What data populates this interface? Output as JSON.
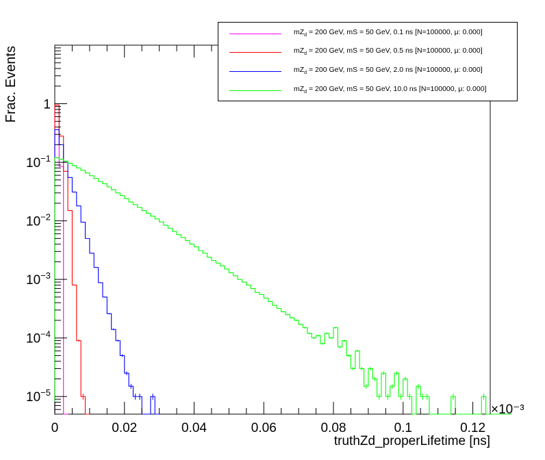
{
  "chart_data": {
    "type": "line",
    "style": "step-histogram",
    "xlabel": "truthZd_properLifetime [ns]",
    "ylabel": "Frac. Events",
    "x_multiplier_label": "×10⁻³",
    "xlim": [
      0,
      0.125
    ],
    "ylim": [
      5e-06,
      10
    ],
    "y_scale": "log",
    "x_ticks": [
      "0",
      "0.02",
      "0.04",
      "0.06",
      "0.08",
      "0.1",
      "0.12"
    ],
    "y_tick_labels": [
      {
        "value": 1e-05,
        "base": "10",
        "exp": "−5"
      },
      {
        "value": 0.0001,
        "base": "10",
        "exp": "−4"
      },
      {
        "value": 0.001,
        "base": "10",
        "exp": "−3"
      },
      {
        "value": 0.01,
        "base": "10",
        "exp": "−2"
      },
      {
        "value": 0.1,
        "base": "10",
        "exp": "−1"
      },
      {
        "value": 1,
        "base": "1",
        "exp": ""
      }
    ],
    "grid": false,
    "legend_position": "top-right",
    "bin_width": 0.00125,
    "series": [
      {
        "name": "mZd = 200 GeV, mS = 50 GeV, 0.1 ns [N=100000,      μ: 0.000]",
        "name_prefix": "mZ",
        "name_sub": "d",
        "name_suffix": " = 200 GeV, mS = 50 GeV, 0.1 ns [N=100000,      μ: 0.000]",
        "color": "#ff00ff",
        "values": [
          0.9,
          0.085,
          0.0
        ]
      },
      {
        "name": "mZd = 200 GeV, mS = 50 GeV, 0.5 ns [N=100000,      μ: 0.000]",
        "name_prefix": "mZ",
        "name_sub": "d",
        "name_suffix": " = 200 GeV, mS = 50 GeV, 0.5 ns [N=100000,      μ: 0.000]",
        "color": "#ff0000",
        "values": [
          0.95,
          0.28,
          0.07,
          0.015,
          0.0008,
          9e-05,
          1e-05,
          0.0
        ]
      },
      {
        "name": "mZd = 200 GeV, mS = 50 GeV, 2.0 ns [N=100000,      μ: 0.000]",
        "name_prefix": "mZ",
        "name_sub": "d",
        "name_suffix": " = 200 GeV, mS = 50 GeV, 2.0 ns [N=100000,      μ: 0.000]",
        "color": "#0000ff",
        "values": [
          0.36,
          0.2,
          0.1,
          0.055,
          0.031,
          0.018,
          0.0095,
          0.005,
          0.0028,
          0.0016,
          0.00088,
          0.0005,
          0.00026,
          0.00014,
          9e-05,
          5e-05,
          2.5e-05,
          1.5e-05,
          1e-05,
          1e-05,
          0.0,
          0.0,
          1e-05,
          0.0
        ]
      },
      {
        "name": "mZd = 200 GeV, mS = 50 GeV, 10.0 ns [N=100000,      μ: 0.000]",
        "name_prefix": "mZ",
        "name_sub": "d",
        "name_suffix": " = 200 GeV, mS = 50 GeV, 10.0 ns [N=100000,      μ: 0.000]",
        "color": "#00ff00",
        "values": [
          0.12,
          0.113,
          0.105,
          0.096,
          0.088,
          0.08,
          0.073,
          0.066,
          0.059,
          0.053,
          0.047,
          0.043,
          0.038,
          0.034,
          0.03,
          0.027,
          0.024,
          0.021,
          0.019,
          0.017,
          0.015,
          0.0135,
          0.012,
          0.0108,
          0.0096,
          0.0084,
          0.0075,
          0.0066,
          0.0058,
          0.0052,
          0.0046,
          0.004,
          0.0036,
          0.0031,
          0.0028,
          0.0024,
          0.0021,
          0.0019,
          0.0017,
          0.0015,
          0.0013,
          0.00115,
          0.001,
          0.0009,
          0.0008,
          0.0007,
          0.0006,
          0.00055,
          0.00048,
          0.00042,
          0.00036,
          0.00032,
          0.00028,
          0.00025,
          0.00022,
          0.0002,
          0.00017,
          0.00015,
          0.00012,
          0.0001,
          0.00011,
          8e-05,
          0.00012,
          0.0001,
          0.00015,
          7e-05,
          9e-05,
          5e-05,
          3e-05,
          6e-05,
          3e-05,
          1.5e-05,
          3e-05,
          2e-05,
          1e-05,
          2.5e-05,
          1e-05,
          1.5e-05,
          2.5e-05,
          1e-05,
          2e-05,
          1e-05,
          0.0,
          1.5e-05,
          1e-05,
          1e-05,
          0.0,
          0.0,
          0.0,
          0.0,
          0.0,
          1e-05,
          0.0,
          0.0,
          0.0,
          0.0,
          0.0,
          0.0,
          1e-05,
          0.0,
          0.0,
          0.0,
          0.0,
          0.0,
          0.0
        ]
      }
    ]
  }
}
